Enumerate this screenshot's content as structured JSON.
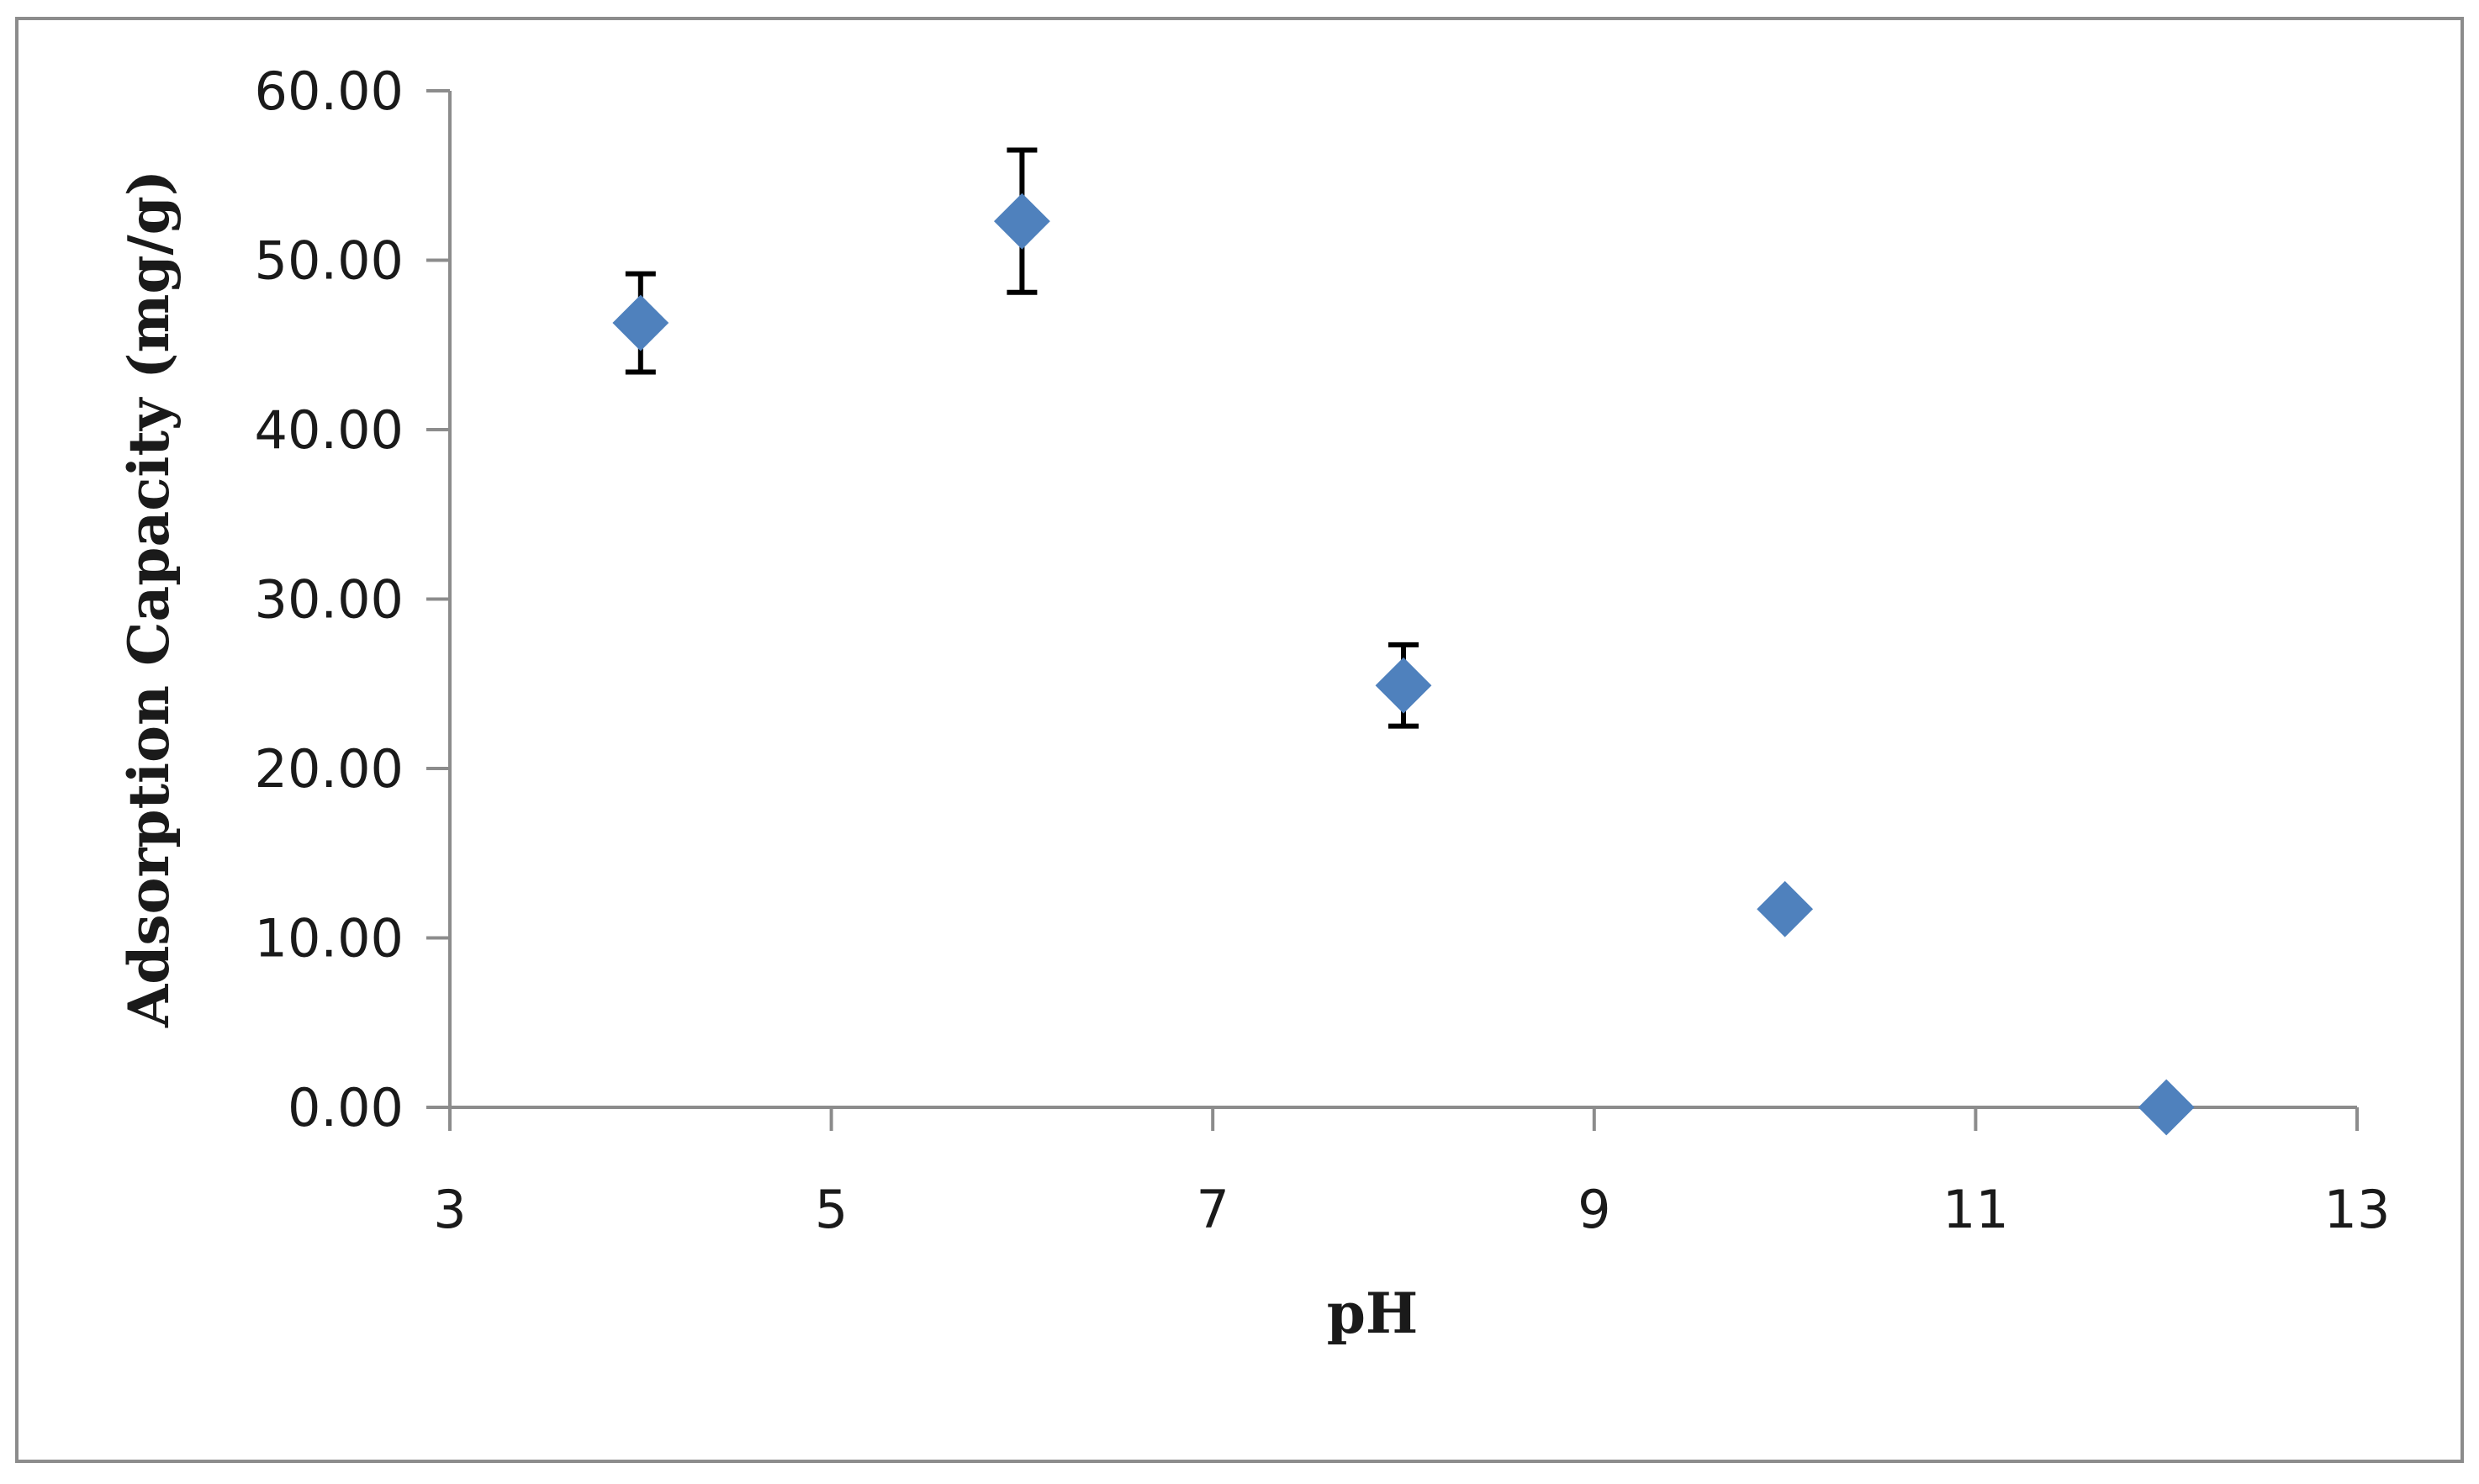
{
  "chart_data": {
    "type": "scatter",
    "title": "",
    "xlabel": "pH",
    "ylabel": "Adsorption Capacity (mg/g)",
    "xlim": [
      3,
      13
    ],
    "ylim": [
      0,
      60
    ],
    "x_ticks": [
      "3",
      "5",
      "7",
      "9",
      "11",
      "13"
    ],
    "x_tick_values": [
      3,
      5,
      7,
      9,
      11,
      13
    ],
    "y_ticks": [
      "0.00",
      "10.00",
      "20.00",
      "30.00",
      "40.00",
      "50.00",
      "60.00"
    ],
    "y_tick_values": [
      0,
      10,
      20,
      30,
      40,
      50,
      60
    ],
    "grid": false,
    "legend": "none",
    "marker": "diamond",
    "marker_color": "#4f81bd",
    "error_bar_color": "#000000",
    "series": [
      {
        "points": [
          {
            "x": 4,
            "y": 46.3,
            "err": 2.9
          },
          {
            "x": 6,
            "y": 52.3,
            "err": 4.2
          },
          {
            "x": 8,
            "y": 24.9,
            "err": 2.4
          },
          {
            "x": 10,
            "y": 11.7,
            "err": 0
          },
          {
            "x": 12,
            "y": 0.0,
            "err": 0
          }
        ]
      }
    ]
  }
}
